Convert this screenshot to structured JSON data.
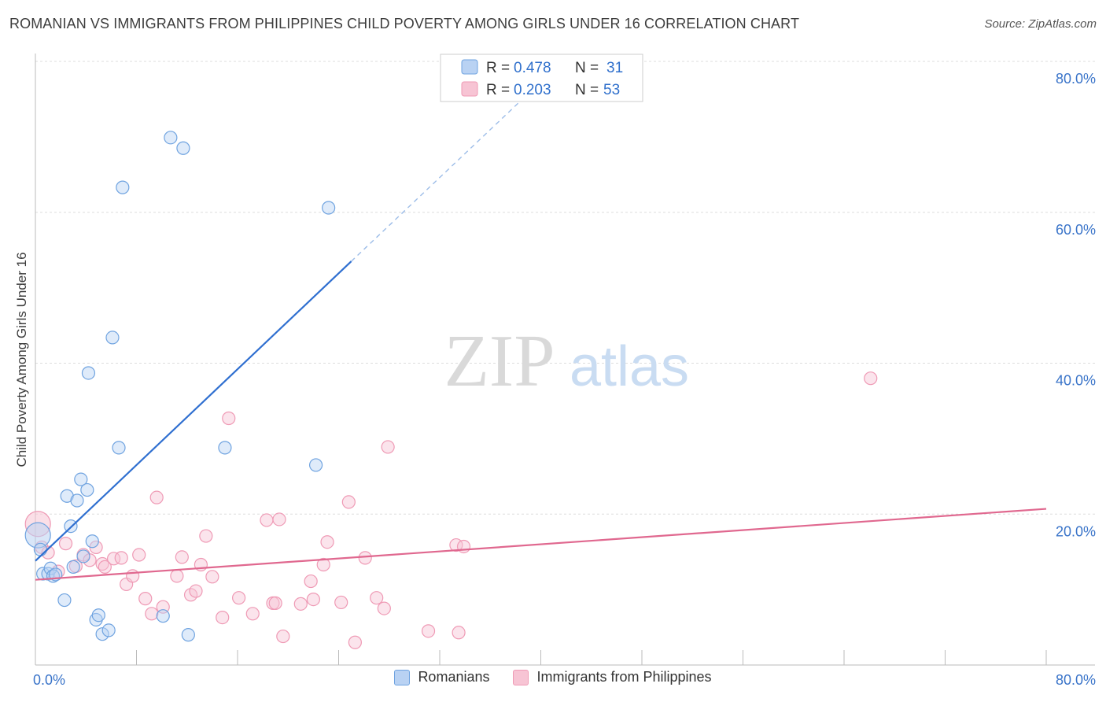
{
  "title": "ROMANIAN VS IMMIGRANTS FROM PHILIPPINES CHILD POVERTY AMONG GIRLS UNDER 16 CORRELATION CHART",
  "source": "Source: ZipAtlas.com",
  "watermark": {
    "zip": "ZIP",
    "atlas": "atlas"
  },
  "chart_data": {
    "type": "scatter",
    "xlabel": "",
    "ylabel": "Child Poverty Among Girls Under 16",
    "xlim": [
      0,
      80
    ],
    "ylim": [
      0,
      80
    ],
    "x_tick_labels": [
      "0.0%",
      "80.0%"
    ],
    "y_ticks": [
      20,
      40,
      60,
      80
    ],
    "y_tick_labels": [
      "20.0%",
      "40.0%",
      "60.0%",
      "80.0%"
    ],
    "grid": true,
    "legend_position": "top-center",
    "series": [
      {
        "name": "Romanians",
        "color": "#6fa3e0",
        "fill": "#b9d2f3",
        "line_color": "#2f6fd0",
        "R": "0.478",
        "N": "31",
        "trend": {
          "x0": 0,
          "y0": 13.8,
          "x1": 25,
          "y1": 53.5,
          "dash_to_x": 40,
          "dash_to_y": 77.3
        },
        "points": [
          [
            0.2,
            17.2
          ],
          [
            0.4,
            15.3
          ],
          [
            0.6,
            12.1
          ],
          [
            1.0,
            12.1
          ],
          [
            1.2,
            12.8
          ],
          [
            1.4,
            11.8
          ],
          [
            1.6,
            12.0
          ],
          [
            2.3,
            8.6
          ],
          [
            2.5,
            22.4
          ],
          [
            2.8,
            18.4
          ],
          [
            3.0,
            13.0
          ],
          [
            3.3,
            21.8
          ],
          [
            3.6,
            24.6
          ],
          [
            3.8,
            14.4
          ],
          [
            4.1,
            23.2
          ],
          [
            4.2,
            38.7
          ],
          [
            4.5,
            16.4
          ],
          [
            4.8,
            6.0
          ],
          [
            5.0,
            6.6
          ],
          [
            5.3,
            4.1
          ],
          [
            5.8,
            4.6
          ],
          [
            6.1,
            43.4
          ],
          [
            6.6,
            28.8
          ],
          [
            6.9,
            63.3
          ],
          [
            10.1,
            6.5
          ],
          [
            10.7,
            69.9
          ],
          [
            11.7,
            68.5
          ],
          [
            12.1,
            4.0
          ],
          [
            15.0,
            28.8
          ],
          [
            23.2,
            60.6
          ],
          [
            22.2,
            26.5
          ]
        ]
      },
      {
        "name": "Immigrants from Philippines",
        "color": "#ef9ab5",
        "fill": "#f7c4d4",
        "line_color": "#e0688f",
        "R": "0.203",
        "N": "53",
        "trend": {
          "x0": 0,
          "y0": 11.3,
          "x1": 80,
          "y1": 20.7
        },
        "points": [
          [
            0.2,
            18.7
          ],
          [
            0.5,
            15.6
          ],
          [
            1.0,
            14.9
          ],
          [
            1.8,
            12.4
          ],
          [
            2.4,
            16.1
          ],
          [
            3.2,
            13.1
          ],
          [
            3.8,
            14.6
          ],
          [
            4.3,
            13.9
          ],
          [
            4.8,
            15.6
          ],
          [
            5.3,
            13.4
          ],
          [
            5.5,
            13.0
          ],
          [
            6.2,
            14.1
          ],
          [
            6.8,
            14.2
          ],
          [
            7.2,
            10.7
          ],
          [
            7.7,
            11.8
          ],
          [
            8.2,
            14.6
          ],
          [
            8.7,
            8.8
          ],
          [
            9.2,
            6.8
          ],
          [
            9.6,
            22.2
          ],
          [
            10.1,
            7.7
          ],
          [
            11.2,
            11.8
          ],
          [
            11.6,
            14.3
          ],
          [
            12.3,
            9.3
          ],
          [
            12.7,
            9.8
          ],
          [
            13.1,
            13.3
          ],
          [
            13.5,
            17.1
          ],
          [
            14.0,
            11.7
          ],
          [
            14.8,
            6.3
          ],
          [
            15.3,
            32.7
          ],
          [
            16.1,
            8.9
          ],
          [
            17.2,
            6.8
          ],
          [
            18.3,
            19.2
          ],
          [
            18.8,
            8.2
          ],
          [
            19.3,
            19.3
          ],
          [
            19.6,
            3.8
          ],
          [
            21.0,
            8.1
          ],
          [
            21.8,
            11.1
          ],
          [
            22.0,
            8.7
          ],
          [
            22.8,
            13.3
          ],
          [
            23.1,
            16.3
          ],
          [
            24.2,
            8.3
          ],
          [
            24.8,
            21.6
          ],
          [
            25.3,
            3.0
          ],
          [
            26.1,
            14.2
          ],
          [
            27.0,
            8.9
          ],
          [
            27.6,
            7.5
          ],
          [
            27.9,
            28.9
          ],
          [
            31.1,
            4.5
          ],
          [
            33.5,
            4.3
          ],
          [
            33.3,
            15.9
          ],
          [
            33.9,
            15.7
          ],
          [
            19.0,
            8.2
          ],
          [
            66.1,
            38.0
          ]
        ]
      }
    ]
  },
  "bottom_legend": [
    "Romanians",
    "Immigrants from Philippines"
  ]
}
